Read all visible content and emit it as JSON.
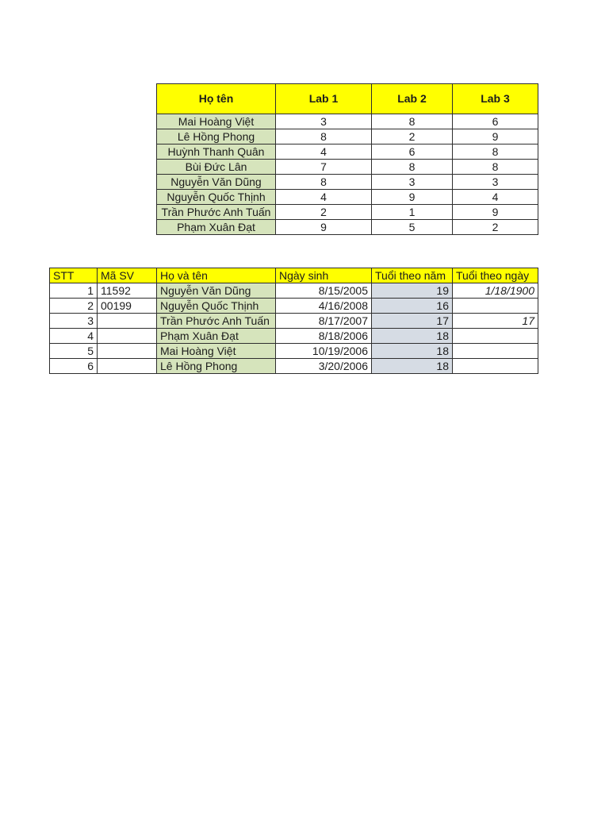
{
  "colors": {
    "header_fill": "#ffff00",
    "name_fill": "#d6e4bc",
    "age_year_fill": "#d6dce4",
    "border": "#2e2e2e",
    "text": "#1c1c1c",
    "page_background": "#ffffff"
  },
  "lab_table": {
    "headers": [
      "Họ tên",
      "Lab 1",
      "Lab 2",
      "Lab 3"
    ],
    "rows": [
      [
        "Mai Hoàng Việt",
        "3",
        "8",
        "6"
      ],
      [
        "Lê Hồng Phong",
        "8",
        "2",
        "9"
      ],
      [
        "Huỳnh Thanh Quân",
        "4",
        "6",
        "8"
      ],
      [
        "Bùi Đức Lân",
        "7",
        "8",
        "8"
      ],
      [
        "Nguyễn Văn Dũng",
        "8",
        "3",
        "3"
      ],
      [
        "Nguyễn Quốc Thịnh",
        "4",
        "9",
        "4"
      ],
      [
        "Trần Phước Anh Tuấn",
        "2",
        "1",
        "9"
      ],
      [
        "Phạm Xuân Đạt",
        "9",
        "5",
        "2"
      ]
    ]
  },
  "student_table": {
    "headers": [
      "STT",
      "Mã SV",
      "Họ và tên",
      "Ngày sinh",
      "Tuổi theo năm",
      "Tuổi theo ngày"
    ],
    "rows": [
      [
        "1",
        "11592",
        "Nguyễn Văn Dũng",
        "8/15/2005",
        "19",
        "1/18/1900"
      ],
      [
        "2",
        "00199",
        "Nguyễn Quốc Thịnh",
        "4/16/2008",
        "16",
        ""
      ],
      [
        "3",
        "",
        "Trần Phước Anh Tuấn",
        "8/17/2007",
        "17",
        "17"
      ],
      [
        "4",
        "",
        "Phạm Xuân Đạt",
        "8/18/2006",
        "18",
        ""
      ],
      [
        "5",
        "",
        "Mai Hoàng Việt",
        "10/19/2006",
        "18",
        ""
      ],
      [
        "6",
        "",
        "Lê Hồng Phong",
        "3/20/2006",
        "18",
        ""
      ]
    ]
  }
}
